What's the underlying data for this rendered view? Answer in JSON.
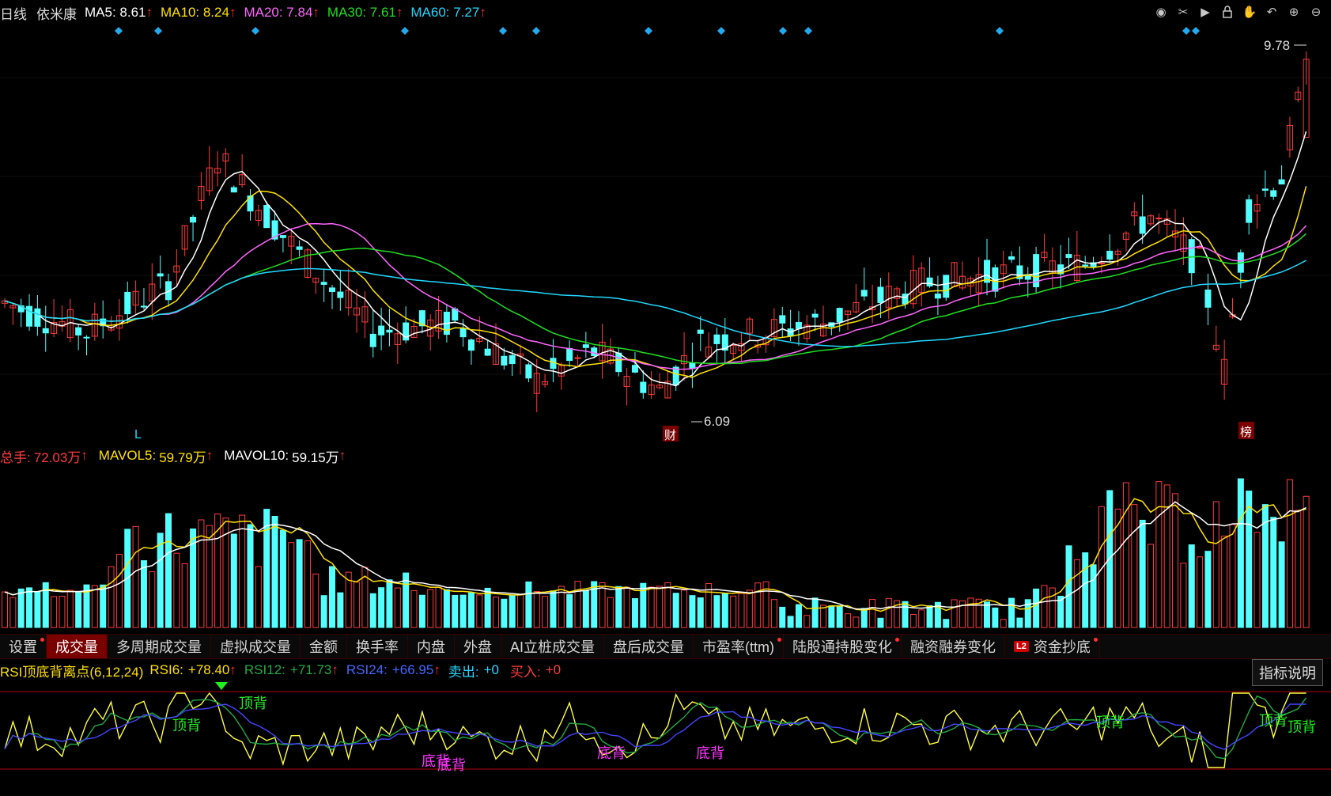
{
  "header": {
    "period": "日线",
    "stock_name": "依米康",
    "ma": [
      {
        "label": "MA5:",
        "value": "8.61",
        "color": "#ffffff"
      },
      {
        "label": "MA10:",
        "value": "8.24",
        "color": "#ffe000"
      },
      {
        "label": "MA20:",
        "value": "7.84",
        "color": "#ff66ff"
      },
      {
        "label": "MA30:",
        "value": "7.61",
        "color": "#22dd22"
      },
      {
        "label": "MA60:",
        "value": "7.27",
        "color": "#22d8ff"
      }
    ],
    "up_arrow": "↑"
  },
  "toolbar_icons": [
    "eye-icon",
    "scissors-icon",
    "replay-icon",
    "lock-icon",
    "hand-icon",
    "undo-icon",
    "zoom-in-icon",
    "zoom-out-icon"
  ],
  "price_chart": {
    "high_label": "9.78",
    "low_label": "6.09",
    "marker_left": "L",
    "marker_cai": "财",
    "marker_bang": "榜"
  },
  "volume_header": {
    "total_label": "总手:",
    "total_value": "72.03万",
    "mavol5_label": "MAVOL5:",
    "mavol5_value": "59.79万",
    "mavol10_label": "MAVOL10:",
    "mavol10_value": "59.15万"
  },
  "tabs": [
    {
      "label": "设置",
      "dot": true,
      "active": false
    },
    {
      "label": "成交量",
      "dot": false,
      "active": true
    },
    {
      "label": "多周期成交量",
      "dot": false,
      "active": false
    },
    {
      "label": "虚拟成交量",
      "dot": false,
      "active": false
    },
    {
      "label": "金额",
      "dot": false,
      "active": false
    },
    {
      "label": "换手率",
      "dot": false,
      "active": false
    },
    {
      "label": "内盘",
      "dot": false,
      "active": false
    },
    {
      "label": "外盘",
      "dot": false,
      "active": false
    },
    {
      "label": "AI立桩成交量",
      "dot": false,
      "active": false
    },
    {
      "label": "盘后成交量",
      "dot": false,
      "active": false
    },
    {
      "label": "市盈率(ttm)",
      "dot": true,
      "active": false
    },
    {
      "label": "陆股通持股变化",
      "dot": true,
      "active": false
    },
    {
      "label": "融资融券变化",
      "dot": false,
      "active": false
    },
    {
      "label": "资金抄底",
      "dot": true,
      "active": false,
      "badge": "L2"
    }
  ],
  "rsi_header": {
    "title": "RSI顶底背离点(6,12,24)",
    "rsi6_label": "RSI6:",
    "rsi6_value": "+78.40",
    "rsi12_label": "RSI12:",
    "rsi12_value": "+71.73",
    "rsi24_label": "RSI24:",
    "rsi24_value": "+66.95",
    "sell_label": "卖出:",
    "sell_value": "+0",
    "buy_label": "买入:",
    "buy_value": "+0"
  },
  "indicator_button": "指标说明",
  "rsi_signals": {
    "top": "顶背",
    "bottom": "底背"
  },
  "colors": {
    "up": "#ff3b3b",
    "down": "#54ffff",
    "ma5": "#ffffff",
    "ma10": "#ffe000",
    "ma20": "#ff66ff",
    "ma30": "#22dd22",
    "ma60": "#22d8ff",
    "rsi6": "#ffff40",
    "rsi12": "#22aa44",
    "rsi24": "#4444ff"
  }
}
